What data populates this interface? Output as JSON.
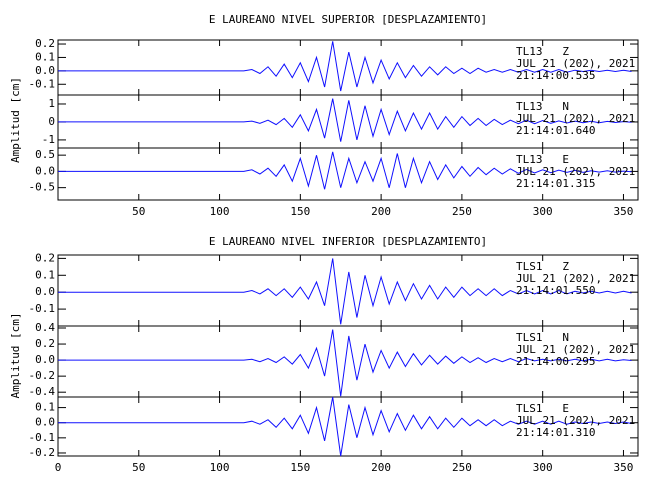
{
  "chart_data": [
    {
      "type": "line",
      "title": "E LAUREANO NIVEL SUPERIOR [DESPLAZAMIENTO]",
      "ylabel": "Amplitud [cm]",
      "xlim": [
        0,
        359
      ],
      "xticks": [
        50,
        100,
        150,
        200,
        250,
        300,
        350
      ],
      "x": [
        0,
        5,
        10,
        15,
        20,
        25,
        30,
        35,
        40,
        45,
        50,
        55,
        60,
        65,
        70,
        75,
        80,
        85,
        90,
        95,
        100,
        105,
        110,
        115,
        120,
        125,
        130,
        135,
        140,
        145,
        150,
        155,
        160,
        165,
        170,
        175,
        180,
        185,
        190,
        195,
        200,
        205,
        210,
        215,
        220,
        225,
        230,
        235,
        240,
        245,
        250,
        255,
        260,
        265,
        270,
        275,
        280,
        285,
        290,
        295,
        300,
        305,
        310,
        315,
        320,
        325,
        330,
        335,
        340,
        345,
        350,
        355
      ],
      "panels": [
        {
          "station": "TL13   Z",
          "date": "JUL 21 (202), 2021",
          "time": "21:14:00.535",
          "color": "#1010ff",
          "ylim": [
            -0.18,
            0.23
          ],
          "yticks": [
            0.2,
            0.1,
            {
              "value": 0,
              "label": "0.0"
            },
            -0.1
          ],
          "values": [
            0,
            0,
            0,
            0,
            0,
            0,
            0,
            0,
            0,
            0,
            0,
            0,
            0,
            0,
            0,
            0,
            0,
            0,
            0,
            0,
            0,
            0,
            0,
            0,
            0.01,
            -0.02,
            0.03,
            -0.04,
            0.05,
            -0.05,
            0.06,
            -0.08,
            0.1,
            -0.12,
            0.22,
            -0.15,
            0.14,
            -0.12,
            0.1,
            -0.09,
            0.08,
            -0.06,
            0.06,
            -0.05,
            0.04,
            -0.04,
            0.03,
            -0.03,
            0.03,
            -0.02,
            0.02,
            -0.02,
            0.02,
            -0.01,
            0.01,
            -0.01,
            0.01,
            -0.01,
            0.01,
            -0.01,
            0.01,
            -0.01,
            0.01,
            -0.01,
            0.005,
            -0.005,
            0.005,
            -0.005,
            0.005,
            -0.005,
            0.005,
            -0.005
          ]
        },
        {
          "station": "TL13   N",
          "date": "JUL 21 (202), 2021",
          "time": "21:14:01.640",
          "color": "#1010ff",
          "ylim": [
            -1.45,
            1.5
          ],
          "yticks": [
            1,
            0,
            -1
          ],
          "values": [
            0,
            0,
            0,
            0,
            0,
            0,
            0,
            0,
            0,
            0,
            0,
            0,
            0,
            0,
            0,
            0,
            0,
            0,
            0,
            0,
            0,
            0,
            0,
            0,
            0.05,
            -0.08,
            0.1,
            -0.15,
            0.2,
            -0.3,
            0.4,
            -0.5,
            0.7,
            -0.9,
            1.3,
            -1.1,
            1.2,
            -1.0,
            0.9,
            -0.8,
            0.7,
            -0.7,
            0.6,
            -0.5,
            0.5,
            -0.4,
            0.5,
            -0.4,
            0.3,
            -0.3,
            0.3,
            -0.2,
            0.2,
            -0.2,
            0.15,
            -0.15,
            0.1,
            -0.1,
            0.1,
            -0.1,
            0.08,
            -0.08,
            0.06,
            -0.06,
            0.05,
            -0.05,
            0.04,
            -0.04,
            0.03,
            -0.03,
            0.02,
            -0.02
          ]
        },
        {
          "station": "TL13   E",
          "date": "JUL 21 (202), 2021",
          "time": "21:14:01.315",
          "color": "#1010ff",
          "ylim": [
            -0.88,
            0.72
          ],
          "yticks": [
            0.5,
            {
              "value": 0,
              "label": "0.0"
            },
            -0.5
          ],
          "values": [
            0,
            0,
            0,
            0,
            0,
            0,
            0,
            0,
            0,
            0,
            0,
            0,
            0,
            0,
            0,
            0,
            0,
            0,
            0,
            0,
            0,
            0,
            0,
            0,
            0.05,
            -0.08,
            0.1,
            -0.15,
            0.2,
            -0.3,
            0.4,
            -0.45,
            0.5,
            -0.55,
            0.6,
            -0.5,
            0.4,
            -0.35,
            0.3,
            -0.3,
            0.4,
            -0.5,
            0.55,
            -0.5,
            0.4,
            -0.35,
            0.3,
            -0.25,
            0.2,
            -0.2,
            0.15,
            -0.15,
            0.12,
            -0.1,
            0.1,
            -0.08,
            0.08,
            -0.06,
            0.06,
            -0.05,
            0.05,
            -0.04,
            0.04,
            -0.03,
            0.03,
            -0.03,
            0.02,
            -0.02,
            0.02,
            -0.02,
            0.01,
            -0.01
          ]
        }
      ]
    },
    {
      "type": "line",
      "title": "E LAUREANO NIVEL INFERIOR [DESPLAZAMIENTO]",
      "ylabel": "Amplitud [cm]",
      "xlim": [
        0,
        359
      ],
      "xticks": [
        0,
        50,
        100,
        150,
        200,
        250,
        300,
        350
      ],
      "x": [
        0,
        5,
        10,
        15,
        20,
        25,
        30,
        35,
        40,
        45,
        50,
        55,
        60,
        65,
        70,
        75,
        80,
        85,
        90,
        95,
        100,
        105,
        110,
        115,
        120,
        125,
        130,
        135,
        140,
        145,
        150,
        155,
        160,
        165,
        170,
        175,
        180,
        185,
        190,
        195,
        200,
        205,
        210,
        215,
        220,
        225,
        230,
        235,
        240,
        245,
        250,
        255,
        260,
        265,
        270,
        275,
        280,
        285,
        290,
        295,
        300,
        305,
        310,
        315,
        320,
        325,
        330,
        335,
        340,
        345,
        350,
        355
      ],
      "panels": [
        {
          "station": "TLS1   Z",
          "date": "JUL 21 (202), 2021",
          "time": "21:14:01.550",
          "color": "#1010ff",
          "ylim": [
            -0.2,
            0.22
          ],
          "yticks": [
            0.2,
            0.1,
            {
              "value": 0,
              "label": "0.0"
            },
            -0.1
          ],
          "values": [
            0,
            0,
            0,
            0,
            0,
            0,
            0,
            0,
            0,
            0,
            0,
            0,
            0,
            0,
            0,
            0,
            0,
            0,
            0,
            0,
            0,
            0,
            0,
            0,
            0.01,
            -0.01,
            0.02,
            -0.02,
            0.02,
            -0.03,
            0.03,
            -0.04,
            0.06,
            -0.08,
            0.2,
            -0.19,
            0.12,
            -0.15,
            0.1,
            -0.08,
            0.09,
            -0.07,
            0.06,
            -0.05,
            0.05,
            -0.04,
            0.04,
            -0.04,
            0.03,
            -0.03,
            0.03,
            -0.02,
            0.02,
            -0.02,
            0.02,
            -0.02,
            0.01,
            -0.01,
            0.01,
            -0.01,
            0.01,
            -0.01,
            0.01,
            -0.01,
            0.005,
            -0.005,
            0.005,
            -0.005,
            0.005,
            -0.005,
            0.005,
            -0.005
          ]
        },
        {
          "station": "TLS1   N",
          "date": "JUL 21 (202), 2021",
          "time": "21:14:00.295",
          "color": "#1010ff",
          "ylim": [
            -0.46,
            0.425
          ],
          "yticks": [
            0.4,
            0.2,
            {
              "value": 0,
              "label": "0.0"
            },
            -0.2,
            -0.4
          ],
          "values": [
            0,
            0,
            0,
            0,
            0,
            0,
            0,
            0,
            0,
            0,
            0,
            0,
            0,
            0,
            0,
            0,
            0,
            0,
            0,
            0,
            0,
            0,
            0,
            0,
            0.01,
            -0.02,
            0.02,
            -0.03,
            0.04,
            -0.05,
            0.07,
            -0.1,
            0.15,
            -0.2,
            0.38,
            -0.45,
            0.3,
            -0.25,
            0.2,
            -0.15,
            0.12,
            -0.1,
            0.1,
            -0.08,
            0.08,
            -0.06,
            0.06,
            -0.05,
            0.05,
            -0.04,
            0.04,
            -0.03,
            0.03,
            -0.03,
            0.02,
            -0.02,
            0.02,
            -0.02,
            0.02,
            -0.01,
            0.01,
            -0.01,
            0.01,
            -0.01,
            0.01,
            -0.01,
            0.01,
            -0.01,
            0.01,
            -0.01,
            0.005,
            -0.005
          ]
        },
        {
          "station": "TLS1   E",
          "date": "JUL 21 (202), 2021",
          "time": "21:14:01.310",
          "color": "#1010ff",
          "ylim": [
            -0.22,
            0.17
          ],
          "yticks": [
            0.1,
            {
              "value": 0,
              "label": "0.0"
            },
            -0.1,
            -0.2
          ],
          "values": [
            0,
            0,
            0,
            0,
            0,
            0,
            0,
            0,
            0,
            0,
            0,
            0,
            0,
            0,
            0,
            0,
            0,
            0,
            0,
            0,
            0,
            0,
            0,
            0,
            0.01,
            -0.01,
            0.02,
            -0.03,
            0.03,
            -0.04,
            0.05,
            -0.07,
            0.1,
            -0.12,
            0.17,
            -0.22,
            0.12,
            -0.1,
            0.1,
            -0.08,
            0.08,
            -0.06,
            0.06,
            -0.05,
            0.05,
            -0.04,
            0.04,
            -0.04,
            0.03,
            -0.03,
            0.03,
            -0.02,
            0.02,
            -0.02,
            0.02,
            -0.02,
            0.01,
            -0.01,
            0.01,
            -0.01,
            0.01,
            -0.01,
            0.01,
            -0.01,
            0.005,
            -0.005,
            0.005,
            -0.005,
            0.005,
            -0.005,
            0.005,
            -0.005
          ]
        }
      ]
    }
  ]
}
